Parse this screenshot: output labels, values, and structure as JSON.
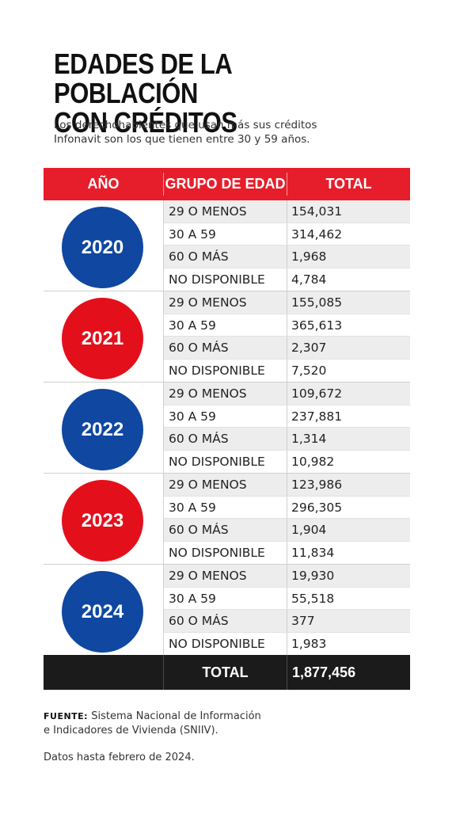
{
  "header": {
    "title_line1": "EDADES DE LA POBLACIÓN",
    "title_line2": "CON CRÉDITOS",
    "subtitle_line1": "Los derechohabientes que usan más sus créditos",
    "subtitle_line2": "Infonavit son los que tienen entre 30 y 59 años."
  },
  "colors": {
    "header_red": "#e61e2b",
    "blue": "#0f47a1",
    "red": "#e3101c",
    "total_bg": "#1b1b1b",
    "row_shade": "#ededed"
  },
  "chart_data": {
    "type": "table",
    "columns": [
      "AÑO",
      "GRUPO DE EDAD",
      "TOTAL"
    ],
    "groups": [
      {
        "year": "2020",
        "color": "blue",
        "rows": [
          {
            "group": "29 O MENOS",
            "value": "154,031"
          },
          {
            "group": "30 A 59",
            "value": "314,462"
          },
          {
            "group": "60 O MÁS",
            "value": "1,968"
          },
          {
            "group": "NO DISPONIBLE",
            "value": "4,784"
          }
        ]
      },
      {
        "year": "2021",
        "color": "red",
        "rows": [
          {
            "group": "29 O MENOS",
            "value": "155,085"
          },
          {
            "group": "30 A 59",
            "value": "365,613"
          },
          {
            "group": "60 O MÁS",
            "value": "2,307"
          },
          {
            "group": "NO DISPONIBLE",
            "value": "7,520"
          }
        ]
      },
      {
        "year": "2022",
        "color": "blue",
        "rows": [
          {
            "group": "29 O MENOS",
            "value": "109,672"
          },
          {
            "group": "30 A 59",
            "value": "237,881"
          },
          {
            "group": "60 O MÁS",
            "value": "1,314"
          },
          {
            "group": "NO DISPONIBLE",
            "value": "10,982"
          }
        ]
      },
      {
        "year": "2023",
        "color": "red",
        "rows": [
          {
            "group": "29 O MENOS",
            "value": "123,986"
          },
          {
            "group": "30 A 59",
            "value": "296,305"
          },
          {
            "group": "60 O MÁS",
            "value": "1,904"
          },
          {
            "group": "NO DISPONIBLE",
            "value": "11,834"
          }
        ]
      },
      {
        "year": "2024",
        "color": "blue",
        "rows": [
          {
            "group": "29 O MENOS",
            "value": "19,930"
          },
          {
            "group": "30 A 59",
            "value": "55,518"
          },
          {
            "group": "60 O MÁS",
            "value": "377"
          },
          {
            "group": "NO DISPONIBLE",
            "value": "1,983"
          }
        ]
      }
    ],
    "total_label": "TOTAL",
    "total_value": "1,877,456"
  },
  "footer": {
    "source_label": "FUENTE:",
    "source_text_line1": "Sistema Nacional de Información",
    "source_text_line2": "e Indicadores de Vivienda (SNIIV).",
    "note": "Datos hasta febrero de 2024."
  }
}
